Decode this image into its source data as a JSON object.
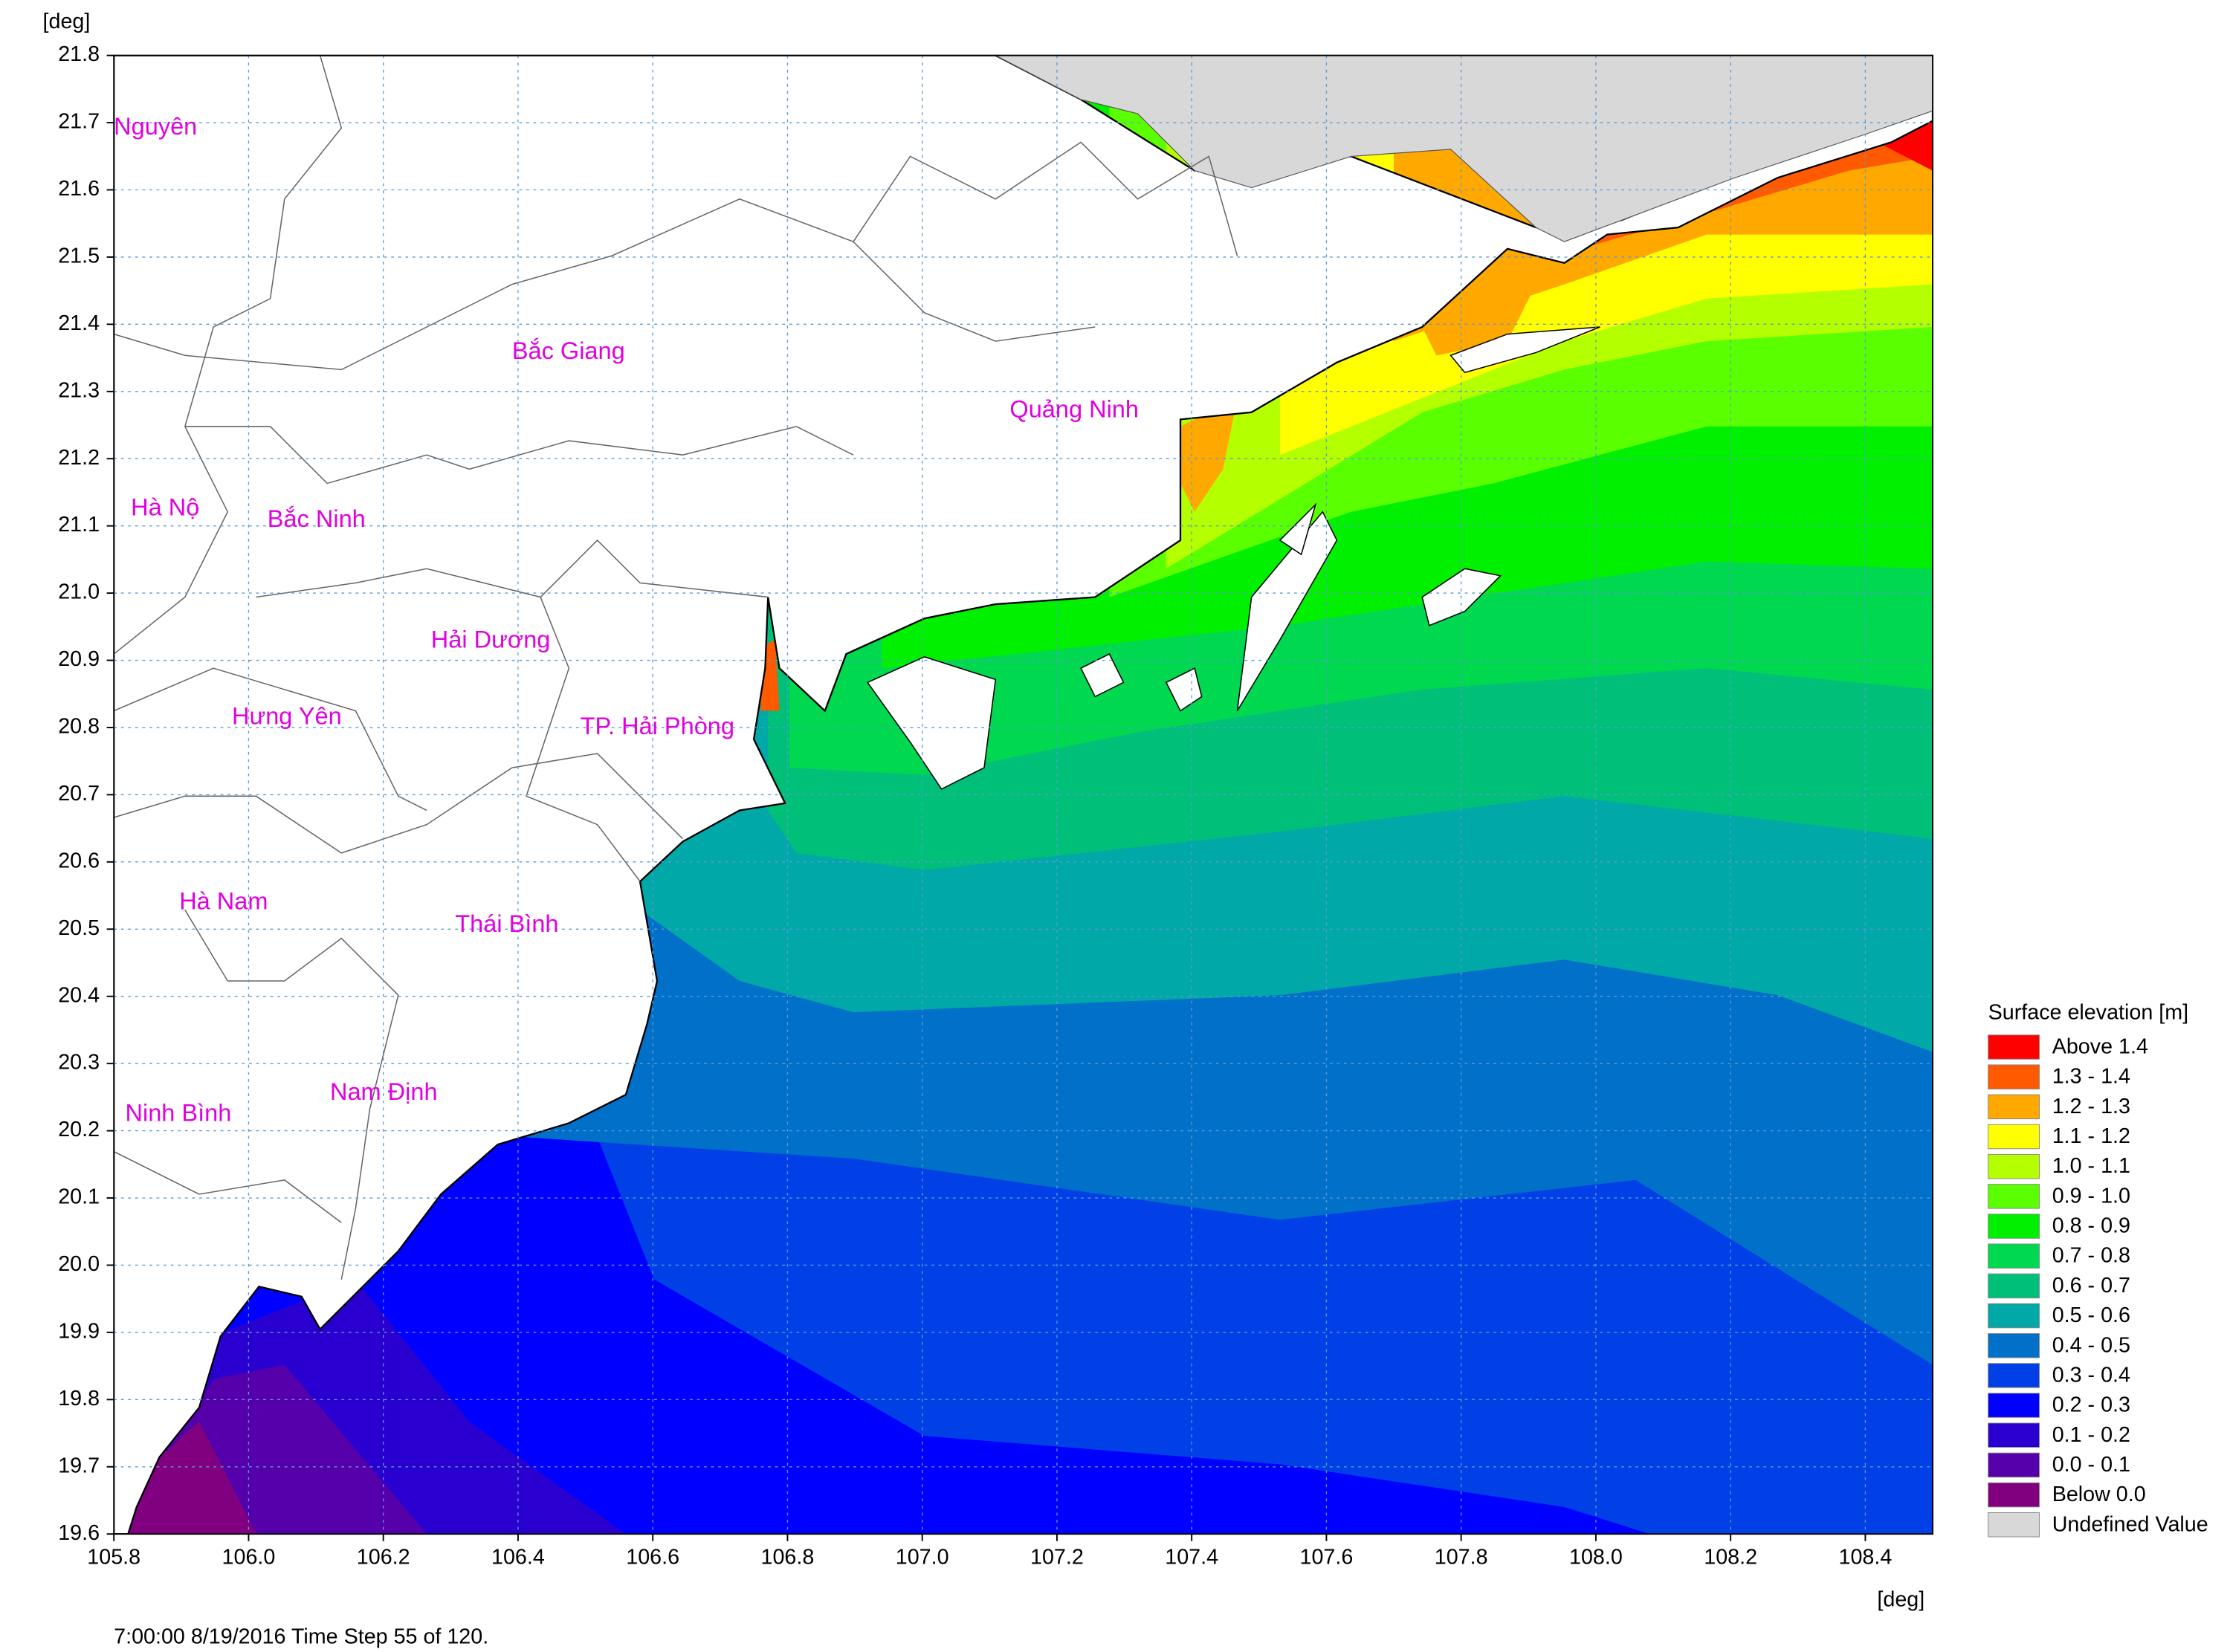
{
  "map": {
    "y_unit": "[deg]",
    "x_unit": "[deg]",
    "xlim": [
      105.8,
      108.5
    ],
    "ylim": [
      19.6,
      21.8
    ],
    "xticks": [
      105.8,
      {
        "value": 106,
        "label": "106.0"
      },
      106.2,
      106.4,
      106.6,
      106.8,
      {
        "value": 107,
        "label": "107.0"
      },
      107.2,
      107.4,
      107.6,
      107.8,
      {
        "value": 108,
        "label": "108.0"
      },
      108.2,
      108.4
    ],
    "yticks": [
      19.6,
      19.7,
      19.8,
      19.9,
      {
        "value": 20,
        "label": "20.0"
      },
      20.1,
      20.2,
      20.3,
      20.4,
      20.5,
      20.6,
      20.7,
      20.8,
      20.9,
      {
        "value": 21,
        "label": "21.0"
      },
      21.1,
      21.2,
      21.3,
      21.4,
      21.5,
      21.6,
      21.7,
      21.8
    ],
    "grid": true,
    "places": [
      "Nguyên",
      "Bắc Giang",
      "Quảng Ninh",
      "Hà Nộ",
      "Bắc Ninh",
      "Hải Dương",
      "Hưng Yên",
      "TP. Hải Phòng",
      "Hà Nam",
      "Thái Bình",
      "Nam Định",
      "Ninh Bình"
    ],
    "footer": "7:00:00 8/19/2016  Time Step 55 of 120."
  },
  "legend": {
    "title": "Surface elevation [m]",
    "entries": [
      {
        "label": "Above 1.4",
        "color": "#ff0000"
      },
      {
        "label": "1.3 - 1.4",
        "color": "#ff5a00"
      },
      {
        "label": "1.2 - 1.3",
        "color": "#ffa800"
      },
      {
        "label": "1.1 - 1.2",
        "color": "#ffff00"
      },
      {
        "label": "1.0 - 1.1",
        "color": "#b4ff00"
      },
      {
        "label": "0.9 - 1.0",
        "color": "#5aff00"
      },
      {
        "label": "0.8 - 0.9",
        "color": "#00f000"
      },
      {
        "label": "0.7 - 0.8",
        "color": "#00d850"
      },
      {
        "label": "0.6 - 0.7",
        "color": "#00bf78"
      },
      {
        "label": "0.5 - 0.6",
        "color": "#00a8a8"
      },
      {
        "label": "0.4 - 0.5",
        "color": "#0070c8"
      },
      {
        "label": "0.3 - 0.4",
        "color": "#0040e6"
      },
      {
        "label": "0.2 - 0.3",
        "color": "#0000ff"
      },
      {
        "label": "0.1 - 0.2",
        "color": "#2a00d0"
      },
      {
        "label": "0.0 - 0.1",
        "color": "#5500aa"
      },
      {
        "label": "Below 0.0",
        "color": "#800080"
      },
      {
        "label": "Undefined Value",
        "color": "#d8d8d8"
      }
    ]
  }
}
